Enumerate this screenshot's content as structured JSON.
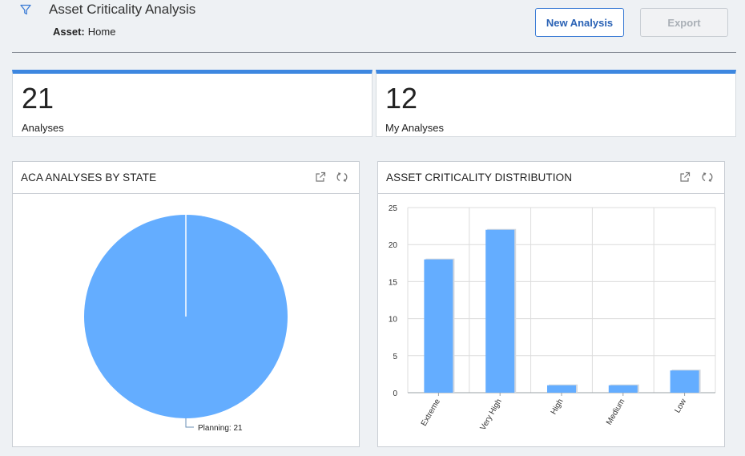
{
  "header": {
    "title": "Asset Criticality Analysis",
    "asset_label": "Asset:",
    "asset_value": "Home",
    "new_analysis_label": "New Analysis",
    "export_label": "Export"
  },
  "kpis": [
    {
      "value": "21",
      "caption": "Analyses"
    },
    {
      "value": "12",
      "caption": "My Analyses"
    }
  ],
  "panels": {
    "state": {
      "title": "ACA ANALYSES BY STATE"
    },
    "distribution": {
      "title": "ASSET CRITICALITY DISTRIBUTION"
    }
  },
  "icons": {
    "filter": "filter-icon",
    "expand": "external-link-icon",
    "refresh": "refresh-icon"
  },
  "colors": {
    "accent": "#3d87e0",
    "series": "#64adff",
    "button_text": "#2a62b5"
  },
  "chart_data": [
    {
      "type": "pie",
      "title": "ACA ANALYSES BY STATE",
      "slices": [
        {
          "label": "Planning",
          "value": 21,
          "display": "Planning: 21"
        }
      ]
    },
    {
      "type": "bar",
      "title": "ASSET CRITICALITY DISTRIBUTION",
      "categories": [
        "Extreme",
        "Very High",
        "High",
        "Medium",
        "Low"
      ],
      "values": [
        18,
        22,
        1,
        1,
        3
      ],
      "ylim": [
        0,
        25
      ],
      "yticks": [
        "0",
        "5",
        "10",
        "15",
        "20",
        "25"
      ],
      "grid": true
    }
  ]
}
